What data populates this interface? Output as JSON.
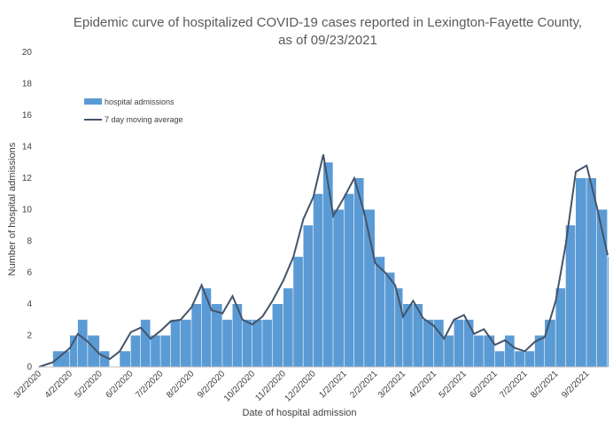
{
  "chart_data": {
    "type": "bar",
    "title": "Epidemic curve of hospitalized COVID-19 cases reported in Lexington-Fayette County,",
    "subtitle": "as of 09/23/2021",
    "xlabel": "Date of hospital admission",
    "ylabel": "Number of hospital admissions",
    "ylim": [
      0,
      20
    ],
    "yticks": [
      "0",
      "2",
      "4",
      "6",
      "8",
      "10",
      "12",
      "14",
      "16",
      "18",
      "20"
    ],
    "x_start": "2020-03-02",
    "x_end": "2021-09-23",
    "xticks": [
      "3/2/2020",
      "4/2/2020",
      "5/2/2020",
      "6/2/2020",
      "7/2/2020",
      "8/2/2020",
      "9/2/2020",
      "10/2/2020",
      "11/2/2020",
      "12/2/2020",
      "1/2/2021",
      "2/2/2021",
      "3/2/2021",
      "4/2/2021",
      "5/2/2021",
      "6/2/2021",
      "7/2/2021",
      "8/2/2021",
      "9/2/2021"
    ],
    "legend_position": "top-left",
    "grid": false,
    "series": [
      {
        "name": "hospital admissions",
        "kind": "bar",
        "color": "#5B9BD5",
        "points": [
          [
            "2020-03-02",
            0
          ],
          [
            "2020-03-16",
            1
          ],
          [
            "2020-04-02",
            2
          ],
          [
            "2020-04-10",
            3
          ],
          [
            "2020-04-20",
            2
          ],
          [
            "2020-05-02",
            1
          ],
          [
            "2020-05-12",
            0
          ],
          [
            "2020-05-22",
            1
          ],
          [
            "2020-06-02",
            2
          ],
          [
            "2020-06-12",
            3
          ],
          [
            "2020-06-22",
            2
          ],
          [
            "2020-07-02",
            2
          ],
          [
            "2020-07-12",
            3
          ],
          [
            "2020-07-22",
            3
          ],
          [
            "2020-08-02",
            4
          ],
          [
            "2020-08-12",
            5
          ],
          [
            "2020-08-22",
            4
          ],
          [
            "2020-09-02",
            3
          ],
          [
            "2020-09-12",
            4
          ],
          [
            "2020-09-22",
            3
          ],
          [
            "2020-10-02",
            3
          ],
          [
            "2020-10-12",
            3
          ],
          [
            "2020-10-22",
            4
          ],
          [
            "2020-11-02",
            5
          ],
          [
            "2020-11-12",
            7
          ],
          [
            "2020-11-22",
            9
          ],
          [
            "2020-12-02",
            11
          ],
          [
            "2020-12-12",
            13
          ],
          [
            "2020-12-22",
            10
          ],
          [
            "2021-01-02",
            11
          ],
          [
            "2021-01-12",
            12
          ],
          [
            "2021-01-22",
            10
          ],
          [
            "2021-02-02",
            7
          ],
          [
            "2021-02-12",
            6
          ],
          [
            "2021-02-22",
            5
          ],
          [
            "2021-03-02",
            4
          ],
          [
            "2021-03-12",
            4
          ],
          [
            "2021-03-22",
            3
          ],
          [
            "2021-04-02",
            3
          ],
          [
            "2021-04-12",
            2
          ],
          [
            "2021-04-22",
            3
          ],
          [
            "2021-05-02",
            3
          ],
          [
            "2021-05-12",
            2
          ],
          [
            "2021-05-22",
            2
          ],
          [
            "2021-06-02",
            1
          ],
          [
            "2021-06-12",
            2
          ],
          [
            "2021-06-22",
            1
          ],
          [
            "2021-07-02",
            1
          ],
          [
            "2021-07-12",
            2
          ],
          [
            "2021-07-22",
            3
          ],
          [
            "2021-08-02",
            5
          ],
          [
            "2021-08-12",
            9
          ],
          [
            "2021-08-22",
            12
          ],
          [
            "2021-09-02",
            12
          ],
          [
            "2021-09-12",
            10
          ],
          [
            "2021-09-23",
            7
          ]
        ]
      },
      {
        "name": "7 day moving average",
        "kind": "line",
        "color": "#44546A",
        "points": [
          [
            "2020-03-02",
            0.0
          ],
          [
            "2020-03-16",
            0.3
          ],
          [
            "2020-04-02",
            1.2
          ],
          [
            "2020-04-10",
            2.1
          ],
          [
            "2020-04-20",
            1.6
          ],
          [
            "2020-05-02",
            0.8
          ],
          [
            "2020-05-12",
            0.5
          ],
          [
            "2020-05-22",
            1.0
          ],
          [
            "2020-06-02",
            2.2
          ],
          [
            "2020-06-12",
            2.5
          ],
          [
            "2020-06-22",
            1.8
          ],
          [
            "2020-07-02",
            2.3
          ],
          [
            "2020-07-12",
            2.9
          ],
          [
            "2020-07-22",
            3.0
          ],
          [
            "2020-08-02",
            3.8
          ],
          [
            "2020-08-12",
            5.2
          ],
          [
            "2020-08-22",
            3.6
          ],
          [
            "2020-09-02",
            3.4
          ],
          [
            "2020-09-12",
            4.5
          ],
          [
            "2020-09-22",
            3.0
          ],
          [
            "2020-10-02",
            2.7
          ],
          [
            "2020-10-12",
            3.2
          ],
          [
            "2020-10-22",
            4.2
          ],
          [
            "2020-11-02",
            5.5
          ],
          [
            "2020-11-12",
            7.0
          ],
          [
            "2020-11-22",
            9.4
          ],
          [
            "2020-12-02",
            10.8
          ],
          [
            "2020-12-12",
            13.5
          ],
          [
            "2020-12-22",
            9.6
          ],
          [
            "2021-01-02",
            10.8
          ],
          [
            "2021-01-12",
            12.0
          ],
          [
            "2021-01-22",
            9.8
          ],
          [
            "2021-02-02",
            6.6
          ],
          [
            "2021-02-12",
            6.0
          ],
          [
            "2021-02-22",
            5.2
          ],
          [
            "2021-03-02",
            3.2
          ],
          [
            "2021-03-12",
            4.2
          ],
          [
            "2021-03-22",
            3.1
          ],
          [
            "2021-04-02",
            2.6
          ],
          [
            "2021-04-12",
            1.8
          ],
          [
            "2021-04-22",
            3.0
          ],
          [
            "2021-05-02",
            3.3
          ],
          [
            "2021-05-12",
            2.1
          ],
          [
            "2021-05-22",
            2.4
          ],
          [
            "2021-06-02",
            1.4
          ],
          [
            "2021-06-12",
            1.7
          ],
          [
            "2021-06-22",
            1.2
          ],
          [
            "2021-07-02",
            1.0
          ],
          [
            "2021-07-12",
            1.6
          ],
          [
            "2021-07-22",
            1.9
          ],
          [
            "2021-08-02",
            4.2
          ],
          [
            "2021-08-12",
            7.8
          ],
          [
            "2021-08-22",
            12.4
          ],
          [
            "2021-09-02",
            12.8
          ],
          [
            "2021-09-12",
            10.2
          ],
          [
            "2021-09-23",
            7.1
          ]
        ]
      }
    ]
  }
}
